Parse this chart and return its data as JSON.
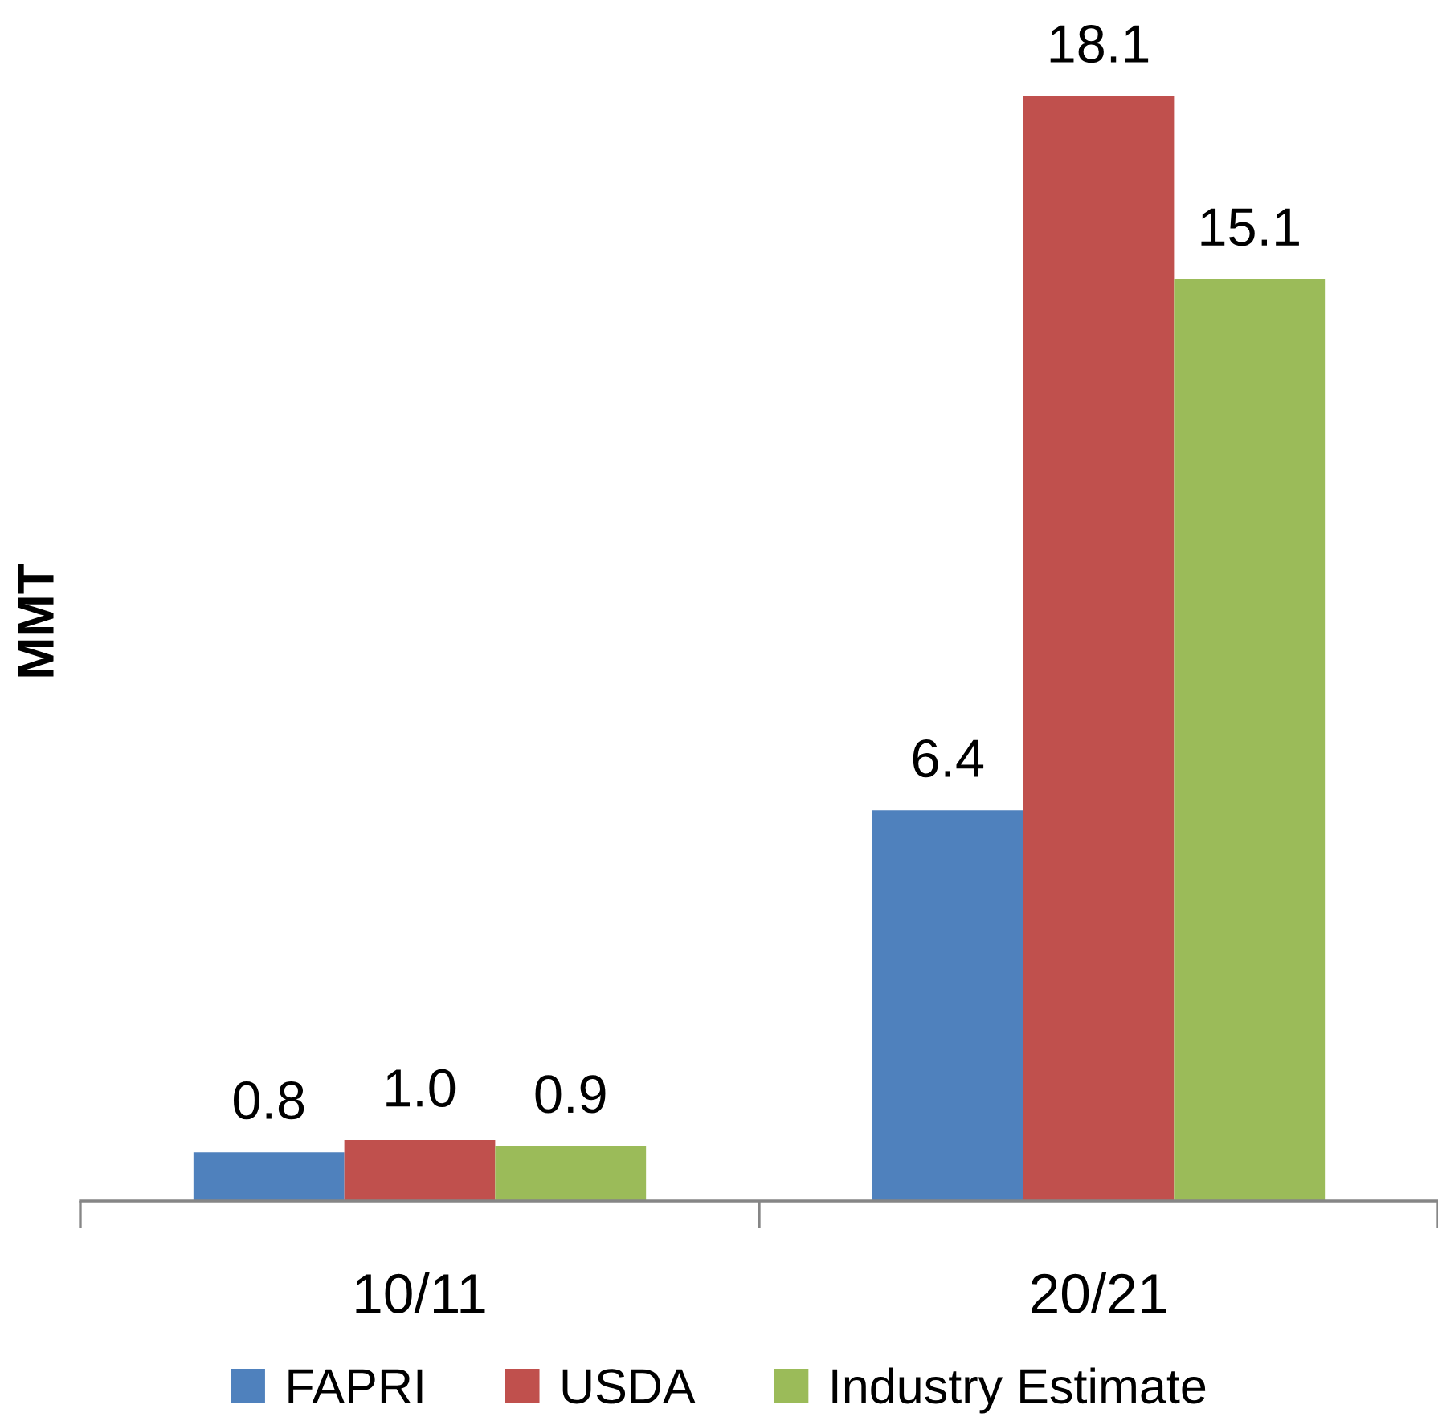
{
  "chart_data": {
    "type": "bar",
    "ylabel": "MMT",
    "categories": [
      "10/11",
      "20/21"
    ],
    "series": [
      {
        "name": "FAPRI",
        "color": "#4f81bd",
        "values": [
          0.8,
          6.4
        ],
        "value_labels": [
          "0.8",
          "6.4"
        ]
      },
      {
        "name": "USDA",
        "color": "#c0504d",
        "values": [
          1.0,
          18.1
        ],
        "value_labels": [
          "1.0",
          "18.1"
        ]
      },
      {
        "name": "Industry Estimate",
        "color": "#9bbb59",
        "values": [
          0.9,
          15.1
        ],
        "value_labels": [
          "0.9",
          "15.1"
        ]
      }
    ],
    "legend": "bottom",
    "grid": false,
    "tick_labels": "x"
  }
}
